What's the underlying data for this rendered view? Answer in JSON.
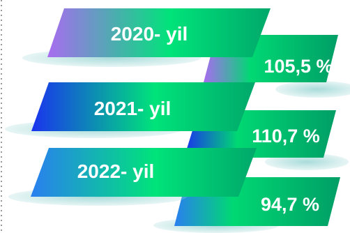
{
  "rows": [
    {
      "year": "2020- yil",
      "value": "105,5 %",
      "colors": {
        "start": "#a86cf0",
        "end": "#00e37a",
        "value_start": "#a86cf0",
        "value_end": "#00c46c"
      }
    },
    {
      "year": "2021- yil",
      "value": "110,7 %",
      "colors": {
        "start": "#1a33ee",
        "end": "#00e37a",
        "value_start": "#1a33ee",
        "value_end": "#00c46c"
      }
    },
    {
      "year": "2022- yil",
      "value": "94,7 %",
      "colors": {
        "start": "#2a7ff0",
        "end": "#00e37a",
        "value_start": "#2a7ff0",
        "value_end": "#00c46c"
      }
    }
  ],
  "colors": {
    "shadow": "#9fd8d6",
    "dots": "#9a9a9a"
  }
}
